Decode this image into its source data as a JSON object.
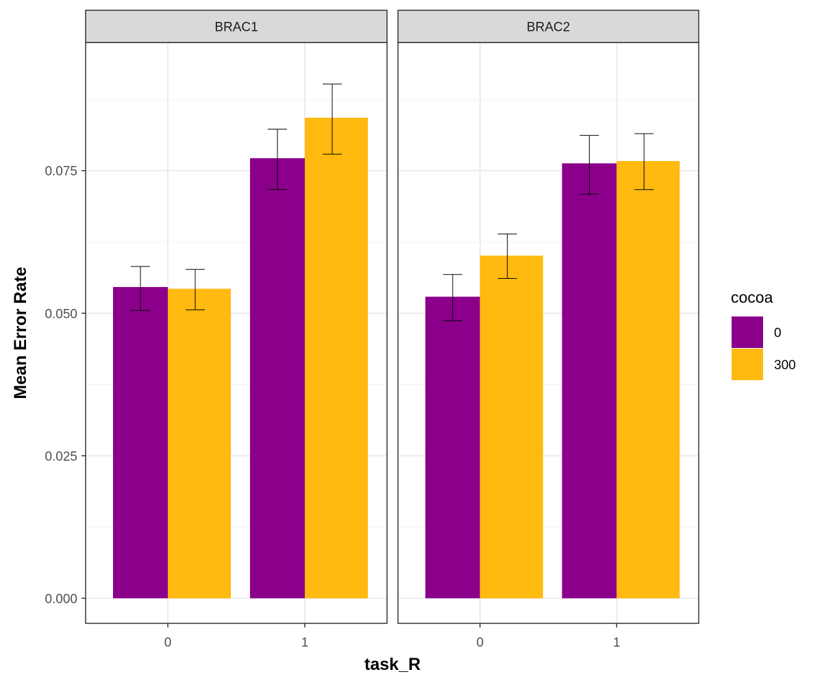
{
  "chart_data": {
    "type": "bar",
    "xlabel": "task_R",
    "ylabel": "Mean Error Rate",
    "ylim": [
      -0.0044,
      0.0975
    ],
    "yticks": [
      0.0,
      0.025,
      0.05,
      0.075
    ],
    "ytick_labels": [
      "0.000",
      "0.025",
      "0.050",
      "0.075"
    ],
    "categories": [
      "0",
      "1"
    ],
    "grid": true,
    "legend": {
      "title": "cocoa",
      "position": "right",
      "entries": [
        {
          "label": "0",
          "color": "#8B008B"
        },
        {
          "label": "300",
          "color": "#FFB90F"
        }
      ]
    },
    "facets": [
      {
        "label": "BRAC1",
        "series": [
          {
            "name": "0",
            "values": [
              0.0546,
              0.0772
            ],
            "error_low": [
              0.0505,
              0.0717
            ],
            "error_high": [
              0.0582,
              0.0823
            ]
          },
          {
            "name": "300",
            "values": [
              0.0543,
              0.0843
            ],
            "error_low": [
              0.0506,
              0.0779
            ],
            "error_high": [
              0.0577,
              0.0902
            ]
          }
        ]
      },
      {
        "label": "BRAC2",
        "series": [
          {
            "name": "0",
            "values": [
              0.0529,
              0.0763
            ],
            "error_low": [
              0.0487,
              0.0709
            ],
            "error_high": [
              0.0568,
              0.0812
            ]
          },
          {
            "name": "300",
            "values": [
              0.0601,
              0.0767
            ],
            "error_low": [
              0.0561,
              0.0717
            ],
            "error_high": [
              0.0639,
              0.0815
            ]
          }
        ]
      }
    ]
  }
}
